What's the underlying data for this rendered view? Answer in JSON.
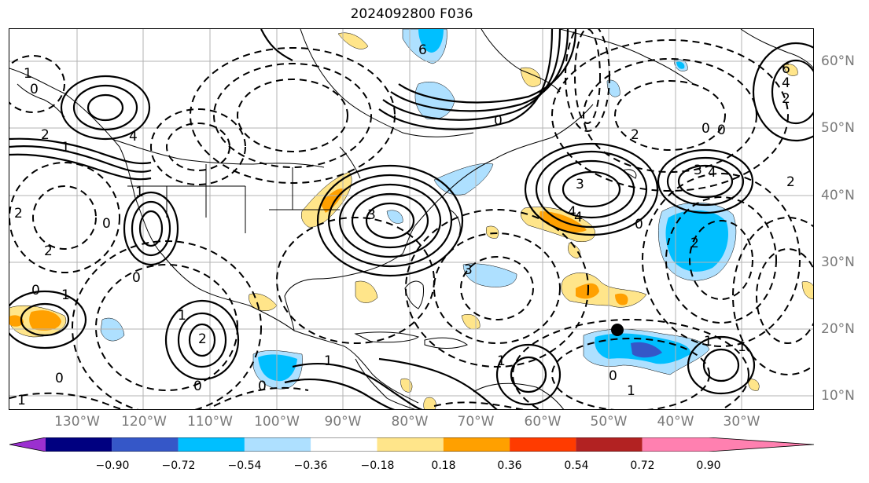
{
  "title": "2024092800 F036",
  "lon_labels": [
    "130°W",
    "120°W",
    "110°W",
    "100°W",
    "90°W",
    "80°W",
    "70°W",
    "60°W",
    "50°W",
    "40°W",
    "30°W"
  ],
  "lat_labels": [
    "60°N",
    "50°N",
    "40°N",
    "30°N",
    "20°N",
    "10°N"
  ],
  "colorbar": {
    "labels": [
      "−0.90",
      "−0.72",
      "−0.54",
      "−0.36",
      "−0.18",
      "0.18",
      "0.36",
      "0.54",
      "0.72",
      "0.90"
    ],
    "colors": [
      "#9b30d0",
      "#000080",
      "#3557c8",
      "#00bfff",
      "#aee0ff",
      "#ffffff",
      "#ffe58a",
      "#ffa000",
      "#ff3b00",
      "#b22222",
      "#ff80b0"
    ]
  },
  "contour_labels": [
    "3",
    "4",
    "3",
    "3",
    "4",
    "6",
    "4",
    "2",
    "0",
    "0",
    "2",
    "1",
    "0",
    "1",
    "0",
    "2",
    "1",
    "4",
    "1",
    "0",
    "0",
    "2",
    "6",
    "0",
    "3",
    "2",
    "0",
    "1",
    "1",
    "0",
    "1",
    "2",
    "1",
    "4",
    "1",
    "0",
    "0",
    "1",
    "2",
    "0",
    "2",
    "1"
  ],
  "colors": {
    "map_grid": "#b3b3b3",
    "axis_label": "#7a7a7a",
    "coast": "#000000",
    "contour": "#000000"
  }
}
